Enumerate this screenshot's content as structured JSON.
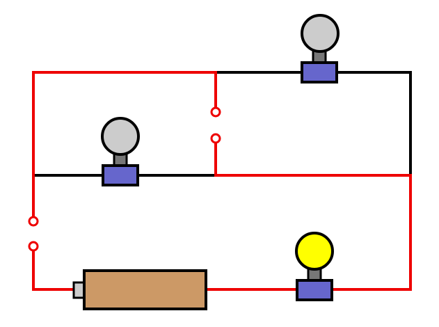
{
  "diagram": {
    "colors": {
      "background": "#ffffff",
      "wire_live": "#ee0000",
      "wire_off": "#000000",
      "bulb_off": "#cccccc",
      "bulb_on": "#ffff00",
      "bulb_neck": "#777777",
      "socket": "#6666cc",
      "battery_body": "#cc9966",
      "battery_terminal": "#cccccc",
      "switch_contact_fill": "#ffffff"
    },
    "bulbs": [
      {
        "id": "bulb-top-right",
        "lit": false
      },
      {
        "id": "bulb-middle-left",
        "lit": false
      },
      {
        "id": "bulb-bottom-right",
        "lit": true
      }
    ],
    "switches": [
      {
        "id": "switch-middle",
        "state": "open"
      },
      {
        "id": "switch-left",
        "state": "open"
      }
    ],
    "battery": {
      "icon": "battery-icon"
    }
  }
}
